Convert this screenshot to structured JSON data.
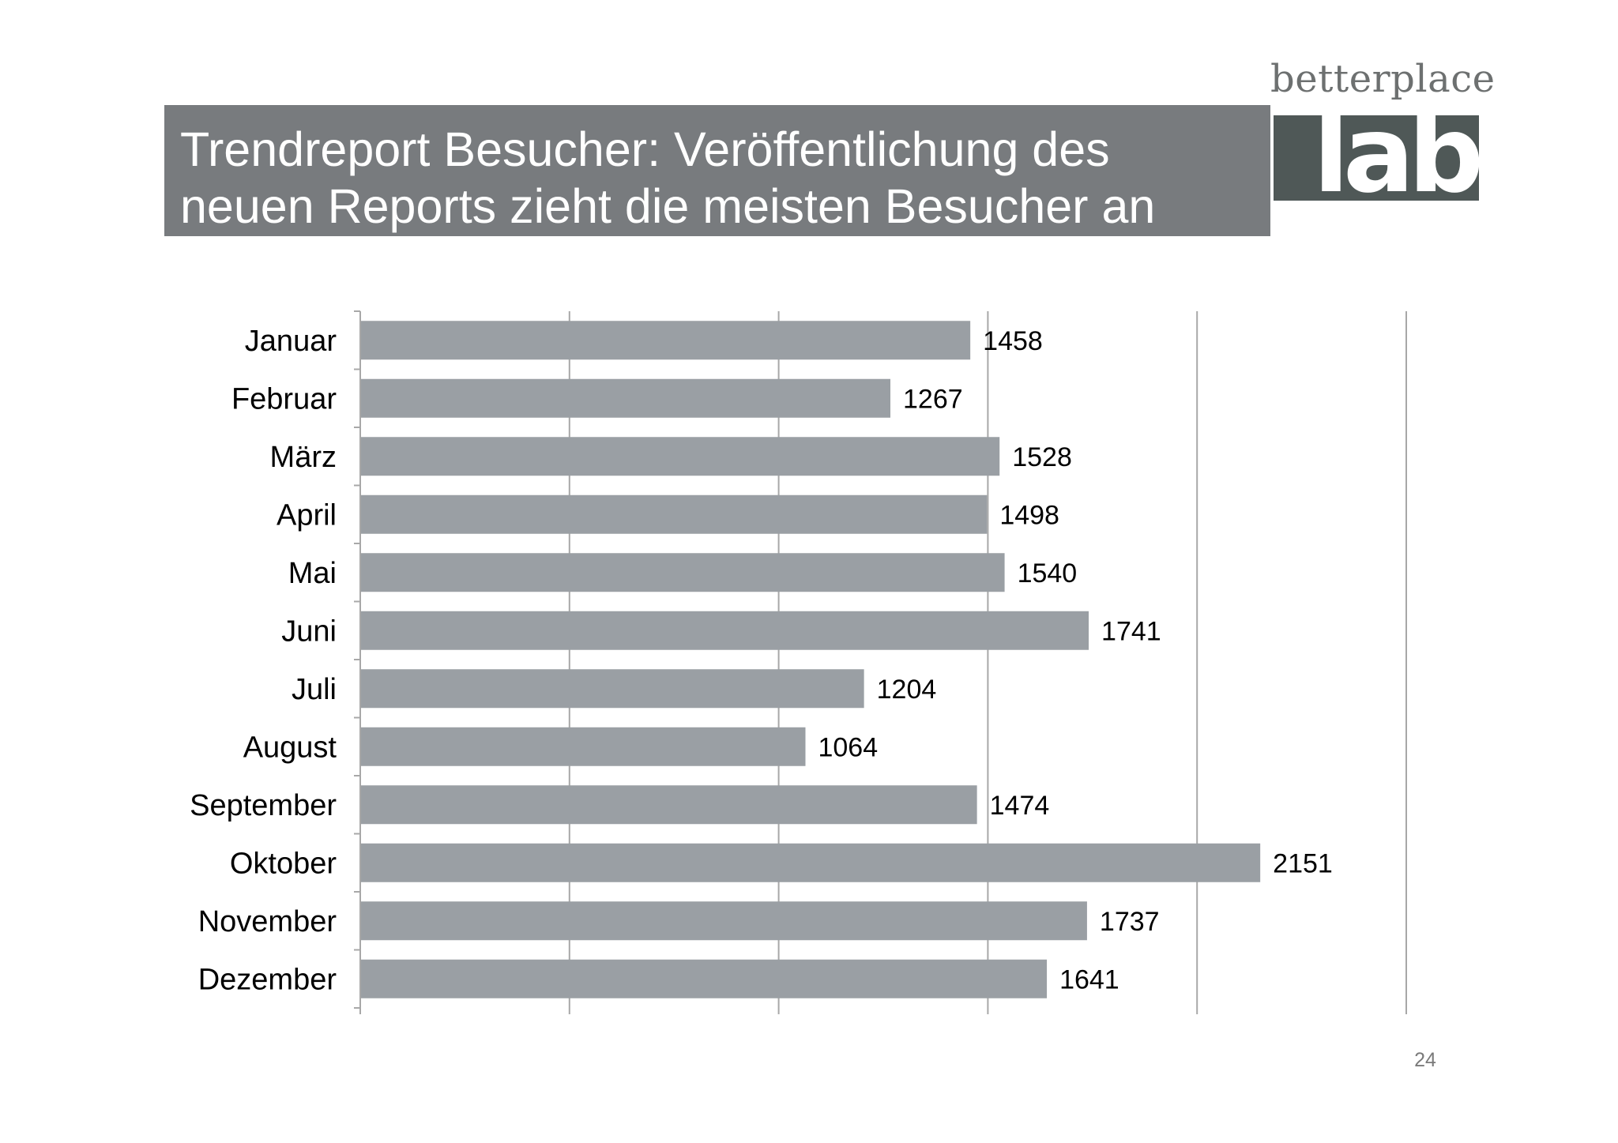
{
  "title": "Trendreport Besucher: Veröffentlichung des neuen Reports zieht die meisten Besucher an",
  "brand": {
    "word": "betterplace",
    "block": "lab"
  },
  "page_number": "24",
  "colors": {
    "title_bg": "#787b7e",
    "bar": "#9a9fa4",
    "grid": "#a8a8a8",
    "brand_block": "#4f5857"
  },
  "chart_data": {
    "type": "bar",
    "orientation": "horizontal",
    "categories": [
      "Januar",
      "Februar",
      "März",
      "April",
      "Mai",
      "Juni",
      "Juli",
      "August",
      "September",
      "Oktober",
      "November",
      "Dezember"
    ],
    "values": [
      1458,
      1267,
      1528,
      1498,
      1540,
      1741,
      1204,
      1064,
      1474,
      2151,
      1737,
      1641
    ],
    "xlim": [
      0,
      2500
    ],
    "x_gridlines": [
      0,
      500,
      1000,
      1500,
      2000,
      2500
    ],
    "grid": true,
    "data_labels": true,
    "legend": "none"
  }
}
